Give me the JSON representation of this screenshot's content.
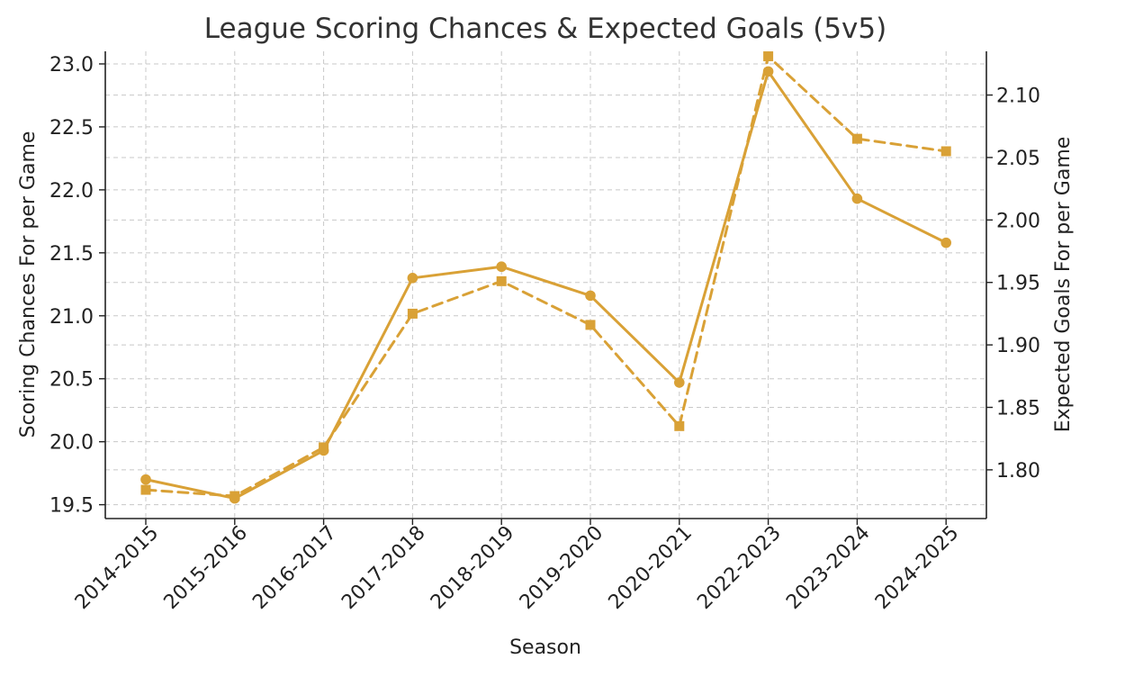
{
  "chart_data": {
    "type": "line",
    "title": "League Scoring Chances & Expected Goals (5v5)",
    "xlabel": "Season",
    "ylabel_left": "Scoring Chances For per Game",
    "ylabel_right": "Expected Goals For per Game",
    "categories": [
      "2014-2015",
      "2015-2016",
      "2016-2017",
      "2017-2018",
      "2018-2019",
      "2019-2020",
      "2020-2021",
      "2022-2023",
      "2023-2024",
      "2024-2025"
    ],
    "left_axis": {
      "ylim": [
        19.39,
        23.1
      ],
      "ticks": [
        "19.5",
        "20.0",
        "20.5",
        "21.0",
        "21.5",
        "22.0",
        "22.5",
        "23.0"
      ]
    },
    "right_axis": {
      "ylim": [
        1.761,
        2.135
      ],
      "ticks": [
        "1.80",
        "1.85",
        "1.90",
        "1.95",
        "2.00",
        "2.05",
        "2.10"
      ]
    },
    "series": [
      {
        "axis": "left",
        "values": [
          19.7,
          19.55,
          19.93,
          21.3,
          21.39,
          21.16,
          20.47,
          22.94,
          21.93,
          21.58
        ],
        "color": "#d9a136",
        "line_style": "solid",
        "marker": "circle"
      },
      {
        "axis": "right",
        "values": [
          1.784,
          1.779,
          1.818,
          1.925,
          1.951,
          1.916,
          1.835,
          2.131,
          2.065,
          2.055
        ],
        "color": "#d9a136",
        "line_style": "dashed",
        "marker": "square"
      }
    ],
    "grid": true,
    "legend": "none"
  }
}
